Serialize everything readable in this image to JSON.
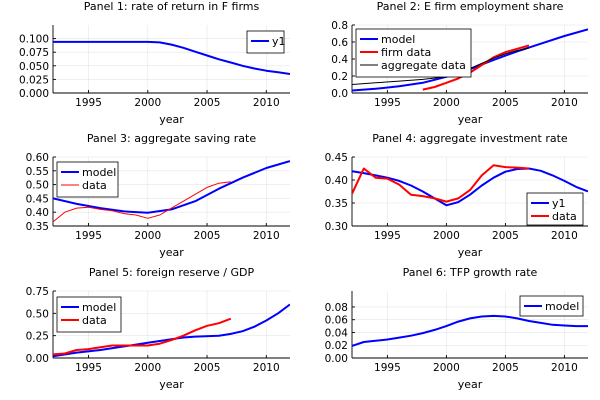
{
  "figure": {
    "background": "#ffffff",
    "colors": {
      "blue": "#0000ff",
      "red": "#ff0000",
      "black": "#000000"
    }
  },
  "chart_data": [
    {
      "type": "line",
      "title": "Panel 1: rate of return in F firms",
      "xlabel": "year",
      "ylabel": "",
      "xlim": [
        1992,
        2012
      ],
      "ylim": [
        0,
        0.125
      ],
      "xticks": [
        1995,
        2000,
        2005,
        2010
      ],
      "yticks": [
        0.0,
        0.025,
        0.05,
        0.075,
        0.1
      ],
      "ytick_labels": [
        "0.000",
        "0.025",
        "0.050",
        "0.075",
        "0.100"
      ],
      "grid": true,
      "legend": "top-right",
      "series": [
        {
          "name": "y1",
          "color": "#0000ff",
          "width": 2,
          "x": [
            1992,
            1994,
            1996,
            1998,
            2000,
            2001,
            2002,
            2003,
            2004,
            2005,
            2006,
            2007,
            2008,
            2009,
            2010,
            2011,
            2012
          ],
          "y": [
            0.094,
            0.094,
            0.094,
            0.094,
            0.094,
            0.093,
            0.089,
            0.083,
            0.076,
            0.069,
            0.062,
            0.056,
            0.05,
            0.045,
            0.041,
            0.038,
            0.035
          ]
        }
      ]
    },
    {
      "type": "line",
      "title": "Panel 2: E firm employment share",
      "xlabel": "year",
      "ylabel": "",
      "xlim": [
        1992,
        2012
      ],
      "ylim": [
        0,
        0.8
      ],
      "xticks": [
        1995,
        2000,
        2005,
        2010
      ],
      "yticks": [
        0.0,
        0.2,
        0.4,
        0.6,
        0.8
      ],
      "ytick_labels": [
        "0.0",
        "0.2",
        "0.4",
        "0.6",
        "0.8"
      ],
      "grid": true,
      "legend": "top-left",
      "series": [
        {
          "name": "model",
          "color": "#0000ff",
          "width": 2,
          "x": [
            1992,
            1994,
            1996,
            1998,
            2000,
            2002,
            2004,
            2006,
            2008,
            2010,
            2012
          ],
          "y": [
            0.03,
            0.05,
            0.08,
            0.12,
            0.19,
            0.28,
            0.39,
            0.49,
            0.58,
            0.67,
            0.75
          ]
        },
        {
          "name": "firm data",
          "color": "#ff0000",
          "width": 2,
          "x": [
            1998,
            1999,
            2000,
            2001,
            2002,
            2003,
            2004,
            2005,
            2006,
            2007
          ],
          "y": [
            0.04,
            0.07,
            0.12,
            0.17,
            0.24,
            0.33,
            0.42,
            0.48,
            0.52,
            0.56
          ]
        },
        {
          "name": "aggregate data",
          "color": "#000000",
          "width": 1,
          "x": [
            1992,
            1994,
            1996,
            1998,
            2000,
            2002,
            2003,
            2004,
            2005,
            2006,
            2007
          ],
          "y": [
            0.1,
            0.12,
            0.14,
            0.16,
            0.19,
            0.29,
            0.35,
            0.41,
            0.46,
            0.5,
            0.53
          ]
        }
      ]
    },
    {
      "type": "line",
      "title": "Panel 3: aggregate saving rate",
      "xlabel": "year",
      "ylabel": "",
      "xlim": [
        1992,
        2012
      ],
      "ylim": [
        0.35,
        0.6
      ],
      "xticks": [
        1995,
        2000,
        2005,
        2010
      ],
      "yticks": [
        0.35,
        0.4,
        0.45,
        0.5,
        0.55,
        0.6
      ],
      "ytick_labels": [
        "0.35",
        "0.40",
        "0.45",
        "0.50",
        "0.55",
        "0.60"
      ],
      "grid": true,
      "legend": "top-left",
      "series": [
        {
          "name": "model",
          "color": "#0000ff",
          "width": 2,
          "x": [
            1992,
            1994,
            1996,
            1998,
            2000,
            2002,
            2004,
            2006,
            2008,
            2010,
            2012
          ],
          "y": [
            0.45,
            0.43,
            0.415,
            0.403,
            0.398,
            0.41,
            0.44,
            0.485,
            0.525,
            0.56,
            0.585
          ]
        },
        {
          "name": "data",
          "color": "#ff0000",
          "width": 1,
          "x": [
            1992,
            1993,
            1994,
            1995,
            1996,
            1997,
            1998,
            1999,
            2000,
            2001,
            2002,
            2003,
            2004,
            2005,
            2006,
            2007
          ],
          "y": [
            0.365,
            0.4,
            0.415,
            0.418,
            0.41,
            0.405,
            0.395,
            0.39,
            0.378,
            0.39,
            0.415,
            0.44,
            0.465,
            0.49,
            0.505,
            0.51
          ]
        }
      ]
    },
    {
      "type": "line",
      "title": "Panel 4: aggregate investment rate",
      "xlabel": "year",
      "ylabel": "",
      "xlim": [
        1992,
        2012
      ],
      "ylim": [
        0.3,
        0.45
      ],
      "xticks": [
        1995,
        2000,
        2005,
        2010
      ],
      "yticks": [
        0.3,
        0.35,
        0.4,
        0.45
      ],
      "ytick_labels": [
        "0.30",
        "0.35",
        "0.40",
        "0.45"
      ],
      "grid": true,
      "legend": "bottom-right",
      "series": [
        {
          "name": "y1",
          "color": "#0000ff",
          "width": 2,
          "x": [
            1992,
            1993,
            1994,
            1995,
            1996,
            1997,
            1998,
            1999,
            2000,
            2001,
            2002,
            2003,
            2004,
            2005,
            2006,
            2007,
            2008,
            2009,
            2010,
            2011,
            2012
          ],
          "y": [
            0.419,
            0.415,
            0.41,
            0.405,
            0.398,
            0.388,
            0.375,
            0.36,
            0.345,
            0.352,
            0.368,
            0.388,
            0.405,
            0.418,
            0.424,
            0.425,
            0.42,
            0.41,
            0.398,
            0.385,
            0.375
          ]
        },
        {
          "name": "data",
          "color": "#ff0000",
          "width": 2,
          "x": [
            1992,
            1993,
            1994,
            1995,
            1996,
            1997,
            1998,
            1999,
            2000,
            2001,
            2002,
            2003,
            2004,
            2005,
            2006,
            2007
          ],
          "y": [
            0.37,
            0.425,
            0.405,
            0.403,
            0.39,
            0.368,
            0.365,
            0.36,
            0.353,
            0.36,
            0.378,
            0.41,
            0.432,
            0.428,
            0.427,
            0.425
          ]
        }
      ]
    },
    {
      "type": "line",
      "title": "Panel 5: foreign reserve / GDP",
      "xlabel": "year",
      "ylabel": "",
      "xlim": [
        1992,
        2012
      ],
      "ylim": [
        0,
        0.75
      ],
      "xticks": [
        1995,
        2000,
        2005,
        2010
      ],
      "yticks": [
        0.0,
        0.25,
        0.5,
        0.75
      ],
      "ytick_labels": [
        "0.00",
        "0.25",
        "0.50",
        "0.75"
      ],
      "grid": true,
      "legend": "top-left",
      "series": [
        {
          "name": "model",
          "color": "#0000ff",
          "width": 2,
          "x": [
            1992,
            1994,
            1996,
            1998,
            2000,
            2001,
            2002,
            2003,
            2004,
            2006,
            2007,
            2008,
            2009,
            2010,
            2011,
            2012
          ],
          "y": [
            0.02,
            0.06,
            0.09,
            0.13,
            0.17,
            0.19,
            0.21,
            0.23,
            0.24,
            0.25,
            0.27,
            0.3,
            0.35,
            0.42,
            0.5,
            0.6
          ]
        },
        {
          "name": "data",
          "color": "#ff0000",
          "width": 2,
          "x": [
            1992,
            1993,
            1994,
            1995,
            1996,
            1997,
            1998,
            1999,
            2000,
            2001,
            2002,
            2003,
            2004,
            2005,
            2006,
            2007
          ],
          "y": [
            0.04,
            0.05,
            0.09,
            0.1,
            0.12,
            0.14,
            0.14,
            0.14,
            0.14,
            0.16,
            0.2,
            0.25,
            0.31,
            0.36,
            0.39,
            0.44
          ]
        }
      ]
    },
    {
      "type": "line",
      "title": "Panel 6: TFP growth rate",
      "xlabel": "year",
      "ylabel": "",
      "xlim": [
        1992,
        2012
      ],
      "ylim": [
        0,
        0.105
      ],
      "xticks": [
        1995,
        2000,
        2005,
        2010
      ],
      "yticks": [
        0.0,
        0.02,
        0.04,
        0.06,
        0.08
      ],
      "ytick_labels": [
        "0.00",
        "0.02",
        "0.04",
        "0.06",
        "0.08"
      ],
      "grid": true,
      "legend": "top-right",
      "series": [
        {
          "name": "model",
          "color": "#0000ff",
          "width": 2,
          "x": [
            1992,
            1993,
            1994,
            1995,
            1996,
            1997,
            1998,
            1999,
            2000,
            2001,
            2002,
            2003,
            2004,
            2005,
            2006,
            2007,
            2008,
            2009,
            2010,
            2011,
            2012
          ],
          "y": [
            0.019,
            0.025,
            0.027,
            0.029,
            0.032,
            0.035,
            0.039,
            0.044,
            0.05,
            0.057,
            0.062,
            0.065,
            0.066,
            0.065,
            0.062,
            0.058,
            0.055,
            0.052,
            0.051,
            0.05,
            0.05
          ]
        }
      ]
    }
  ]
}
